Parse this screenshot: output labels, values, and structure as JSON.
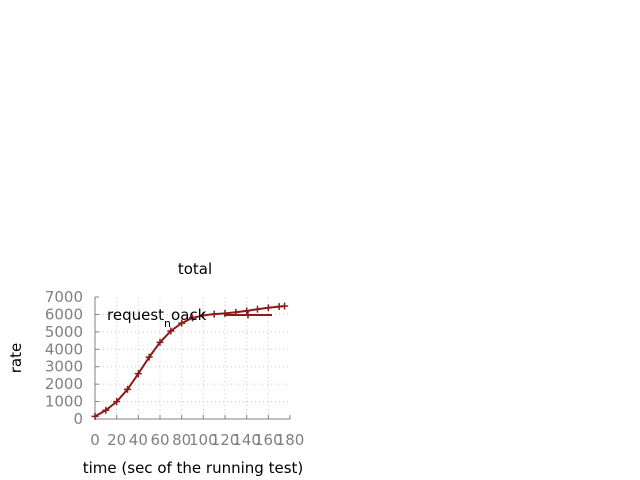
{
  "chart_data": {
    "type": "line",
    "title": "total",
    "xlabel": "time (sec of the running test)",
    "ylabel": "rate",
    "xlim": [
      0,
      180
    ],
    "ylim": [
      0,
      7000
    ],
    "x_ticks": [
      0,
      20,
      40,
      60,
      80,
      100,
      120,
      140,
      160,
      180
    ],
    "y_ticks": [
      0,
      1000,
      2000,
      3000,
      4000,
      5000,
      6000,
      7000
    ],
    "grid": true,
    "legend_position": "top-left",
    "series": [
      {
        "name_base": "request",
        "name_sub": "n",
        "name_tail": "oack",
        "color": "#8b1a1a",
        "marker": "plus",
        "x": [
          0,
          10,
          20,
          30,
          40,
          50,
          60,
          70,
          80,
          90,
          100,
          110,
          120,
          130,
          140,
          150,
          160,
          170,
          175
        ],
        "y": [
          150,
          500,
          1000,
          1700,
          2600,
          3550,
          4400,
          5050,
          5500,
          5800,
          5950,
          6020,
          6060,
          6120,
          6200,
          6300,
          6380,
          6450,
          6480
        ]
      }
    ]
  }
}
